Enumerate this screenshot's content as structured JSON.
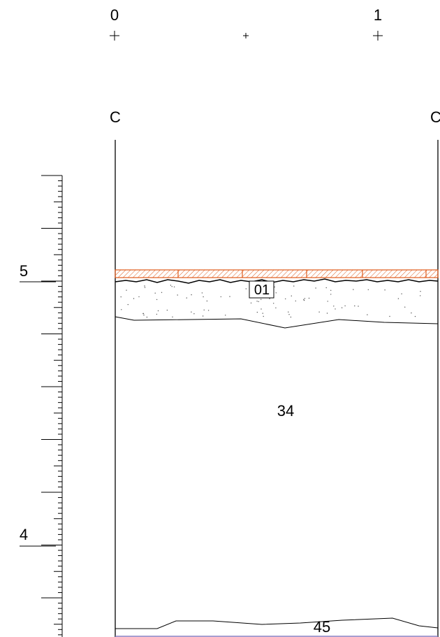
{
  "grid_labels": {
    "left": "0",
    "right": "1"
  },
  "section_labels": {
    "left": "C",
    "right": "C"
  },
  "elevation_labels": {
    "upper": "5",
    "lower": "4"
  },
  "layers": {
    "top_box_label": "01",
    "middle_label": "34",
    "bottom_label": "45"
  },
  "colors": {
    "line": "#000000",
    "pavement_stroke": "#e05a1a",
    "pavement_fill": "#ffffff",
    "fill_dots": "#555555"
  }
}
